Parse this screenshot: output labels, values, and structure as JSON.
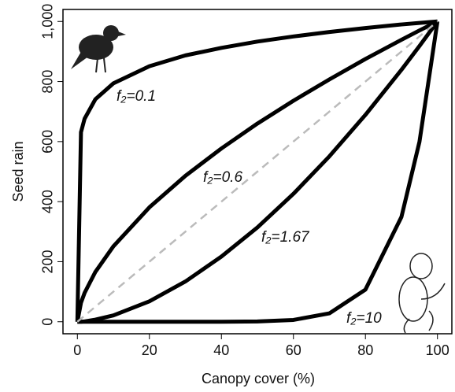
{
  "chart_data": {
    "type": "line",
    "xlabel": "Canopy cover (%)",
    "ylabel": "Seed rain",
    "x": [
      0,
      1,
      2,
      5,
      10,
      20,
      30,
      40,
      50,
      60,
      70,
      80,
      90,
      95,
      100
    ],
    "series": [
      {
        "label": "f₂=0.1",
        "color": "#000000",
        "values": [
          0,
          631,
          676,
          741,
          794,
          851,
          887,
          912,
          933,
          950,
          965,
          978,
          990,
          995,
          1000
        ]
      },
      {
        "label": "f₂=0.6",
        "color": "#000000",
        "values": [
          0,
          63,
          96,
          166,
          251,
          381,
          486,
          577,
          660,
          736,
          807,
          875,
          939,
          970,
          1000
        ]
      },
      {
        "label": "f₂=1.67",
        "color": "#000000",
        "values": [
          0,
          0,
          1,
          7,
          21,
          68,
          134,
          217,
          314,
          426,
          551,
          689,
          839,
          918,
          1000
        ]
      },
      {
        "label": "f₂=10",
        "color": "#000000",
        "values": [
          0,
          0,
          0,
          0,
          0,
          0,
          0,
          0,
          1,
          6,
          28,
          107,
          349,
          599,
          1000
        ]
      },
      {
        "color": "#bbbbbb",
        "dashed": true,
        "values": [
          0,
          10,
          20,
          50,
          100,
          200,
          300,
          400,
          500,
          600,
          700,
          800,
          900,
          950,
          1000
        ]
      }
    ],
    "xlim": [
      -4,
      104
    ],
    "ylim": [
      -40,
      1040
    ],
    "xticks": [
      0,
      20,
      40,
      60,
      80,
      100
    ],
    "yticks": [
      0,
      200,
      400,
      600,
      800,
      {
        "value": 1000,
        "label": "1,000"
      }
    ]
  }
}
